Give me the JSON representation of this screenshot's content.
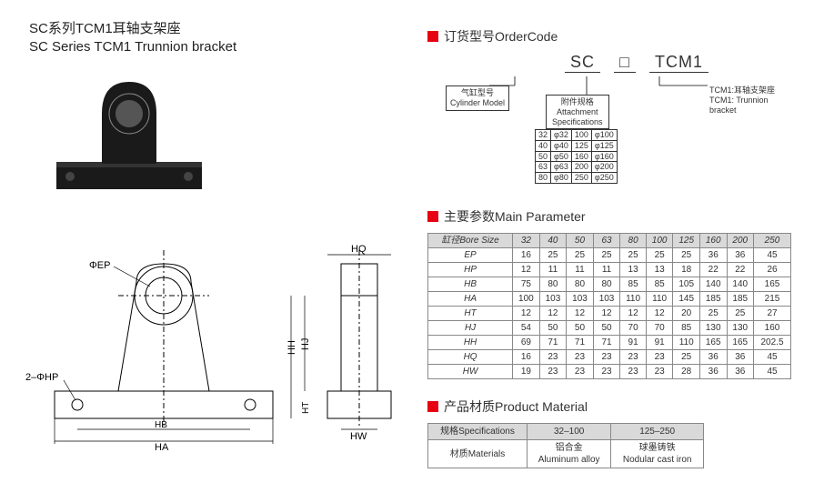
{
  "title": {
    "cn": "SC系列TCM1耳轴支架座",
    "en": "SC Series TCM1 Trunnion bracket"
  },
  "ordercode": {
    "heading": "订货型号OrderCode",
    "parts": [
      "SC",
      "□",
      "TCM1"
    ],
    "left_label_cn": "气缸型号",
    "left_label_en": "Cylinder Model",
    "mid_label_cn": "附件规格",
    "mid_label_en1": "Attachment",
    "mid_label_en2": "Specifications",
    "right_label_cn": "TCM1:耳轴支架座",
    "right_label_en": "TCM1: Trunnion bracket",
    "spec_rows": [
      [
        "32",
        "φ32",
        "100",
        "φ100"
      ],
      [
        "40",
        "φ40",
        "125",
        "φ125"
      ],
      [
        "50",
        "φ50",
        "160",
        "φ160"
      ],
      [
        "63",
        "φ63",
        "200",
        "φ200"
      ],
      [
        "80",
        "φ80",
        "250",
        "φ250"
      ]
    ]
  },
  "mainparam": {
    "heading": "主要参数Main Parameter",
    "header_label": "缸径Bore Size",
    "sizes": [
      "32",
      "40",
      "50",
      "63",
      "80",
      "100",
      "125",
      "160",
      "200",
      "250"
    ],
    "rows": [
      {
        "k": "EP",
        "v": [
          "16",
          "25",
          "25",
          "25",
          "25",
          "25",
          "25",
          "36",
          "36",
          "45"
        ]
      },
      {
        "k": "HP",
        "v": [
          "12",
          "11",
          "11",
          "11",
          "13",
          "13",
          "18",
          "22",
          "22",
          "26"
        ]
      },
      {
        "k": "HB",
        "v": [
          "75",
          "80",
          "80",
          "80",
          "85",
          "85",
          "105",
          "140",
          "140",
          "165"
        ]
      },
      {
        "k": "HA",
        "v": [
          "100",
          "103",
          "103",
          "103",
          "110",
          "110",
          "145",
          "185",
          "185",
          "215"
        ]
      },
      {
        "k": "HT",
        "v": [
          "12",
          "12",
          "12",
          "12",
          "12",
          "12",
          "20",
          "25",
          "25",
          "27"
        ]
      },
      {
        "k": "HJ",
        "v": [
          "54",
          "50",
          "50",
          "50",
          "70",
          "70",
          "85",
          "130",
          "130",
          "160"
        ]
      },
      {
        "k": "HH",
        "v": [
          "69",
          "71",
          "71",
          "71",
          "91",
          "91",
          "110",
          "165",
          "165",
          "202.5"
        ]
      },
      {
        "k": "HQ",
        "v": [
          "16",
          "23",
          "23",
          "23",
          "23",
          "23",
          "25",
          "36",
          "36",
          "45"
        ]
      },
      {
        "k": "HW",
        "v": [
          "19",
          "23",
          "23",
          "23",
          "23",
          "23",
          "28",
          "36",
          "36",
          "45"
        ]
      }
    ]
  },
  "material": {
    "heading": "产品材质Product Material",
    "header": [
      "规格Specifications",
      "32–100",
      "125–250"
    ],
    "row_label": "材质Materials",
    "cells": [
      {
        "cn": "铝合金",
        "en": "Aluminum alloy"
      },
      {
        "cn": "球墨铸铁",
        "en": "Nodular cast iron"
      }
    ]
  },
  "diagram_labels": {
    "phi_ep": "ΦEP",
    "two_phi_hp": "2–ΦHP",
    "HH": "HH",
    "HJ": "HJ",
    "HT": "HT",
    "HB": "HB",
    "HA": "HA",
    "HQ": "HQ",
    "HW": "HW"
  },
  "colors": {
    "accent": "#e60012",
    "border": "#888888",
    "header_bg": "#d9d9d9"
  }
}
